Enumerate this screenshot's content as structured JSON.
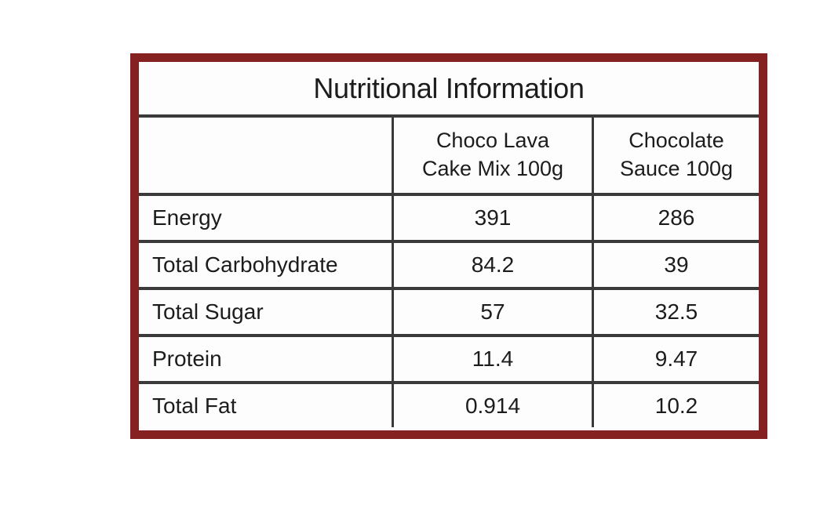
{
  "chart_data": {
    "type": "table",
    "title": "Nutritional Information",
    "columns": [
      "",
      "Choco Lava Cake Mix 100g",
      "Chocolate Sauce 100g"
    ],
    "rows": [
      [
        "Energy",
        391,
        286
      ],
      [
        "Total Carbohydrate",
        84.2,
        39
      ],
      [
        "Total Sugar",
        57,
        32.5
      ],
      [
        "Protein",
        11.4,
        9.47
      ],
      [
        "Total Fat",
        0.914,
        10.2
      ]
    ]
  },
  "table": {
    "title": "Nutritional Information",
    "col_headers": [
      {
        "line1": "Choco Lava",
        "line2": "Cake Mix 100g"
      },
      {
        "line1": "Chocolate",
        "line2": "Sauce 100g"
      }
    ],
    "rows": [
      {
        "label": "Energy",
        "choco_lava_cake_mix": "391",
        "chocolate_sauce": "286"
      },
      {
        "label": "Total Carbohydrate",
        "choco_lava_cake_mix": "84.2",
        "chocolate_sauce": "39"
      },
      {
        "label": "Total Sugar",
        "choco_lava_cake_mix": "57",
        "chocolate_sauce": "32.5"
      },
      {
        "label": "Protein",
        "choco_lava_cake_mix": "11.4",
        "chocolate_sauce": "9.47"
      },
      {
        "label": "Total Fat",
        "choco_lava_cake_mix": "0.914",
        "chocolate_sauce": "10.2"
      }
    ]
  },
  "colors": {
    "frame": "#862121",
    "grid_line": "#3a3a3a",
    "text": "#1c1c1c",
    "background": "#ffffff"
  }
}
